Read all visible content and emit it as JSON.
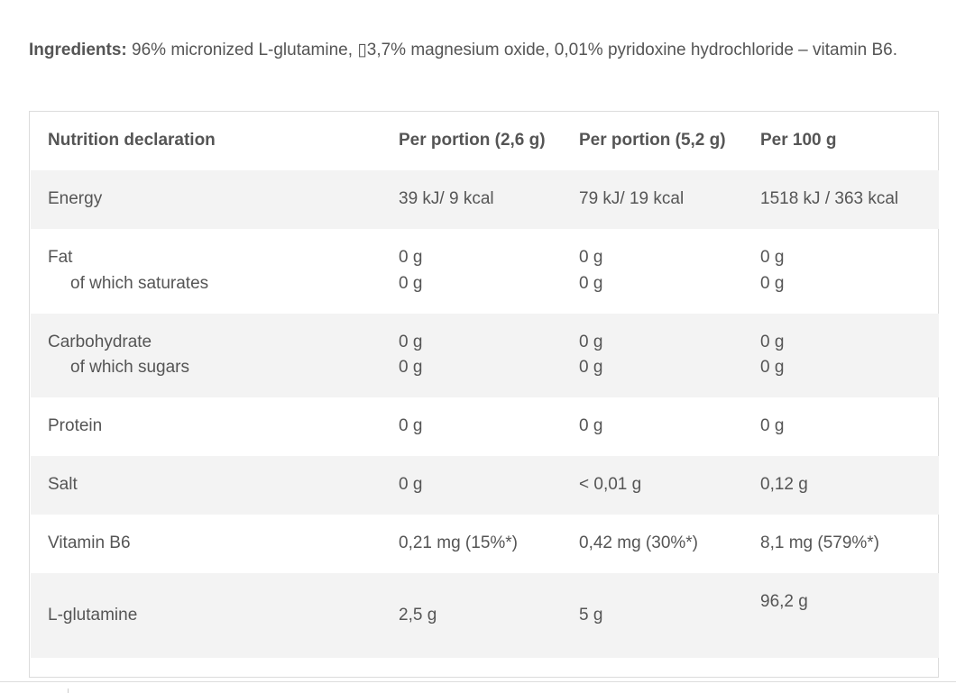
{
  "ingredients": {
    "label": "Ingredients:",
    "text": " 96% micronized L-glutamine, ▯3,7% magnesium oxide, 0,01% pyridoxine hydrochloride – vitamin B6."
  },
  "table": {
    "header": [
      "Nutrition declaration",
      "Per portion (2,6 g)",
      "Per portion (5,2 g)",
      "Per 100 g"
    ],
    "energy": [
      "Energy",
      "39  kJ/  9 kcal",
      "79  kJ/  19 kcal",
      "1518 kJ / 363 kcal"
    ],
    "fat": [
      "Fat",
      "0 g",
      "0 g",
      "0 g"
    ],
    "saturates": [
      "of which saturates",
      "0 g",
      "0 g",
      "0 g"
    ],
    "carbohydrate": [
      "Carbohydrate",
      "0 g",
      "0 g",
      "0 g"
    ],
    "sugars": [
      "of which sugars",
      "0 g",
      "0 g",
      "0 g"
    ],
    "protein": [
      "Protein",
      "0 g",
      "0 g",
      "0 g"
    ],
    "salt": [
      "Salt",
      "0 g",
      "< 0,01 g",
      "0,12 g"
    ],
    "vitamin_b6": [
      "Vitamin B6",
      "0,21 mg (15%*)",
      "0,42 mg (30%*)",
      "8,1 mg (579%*)"
    ],
    "glutamine": [
      "L-glutamine",
      "2,5 g",
      "5 g",
      "96,2 g"
    ]
  }
}
